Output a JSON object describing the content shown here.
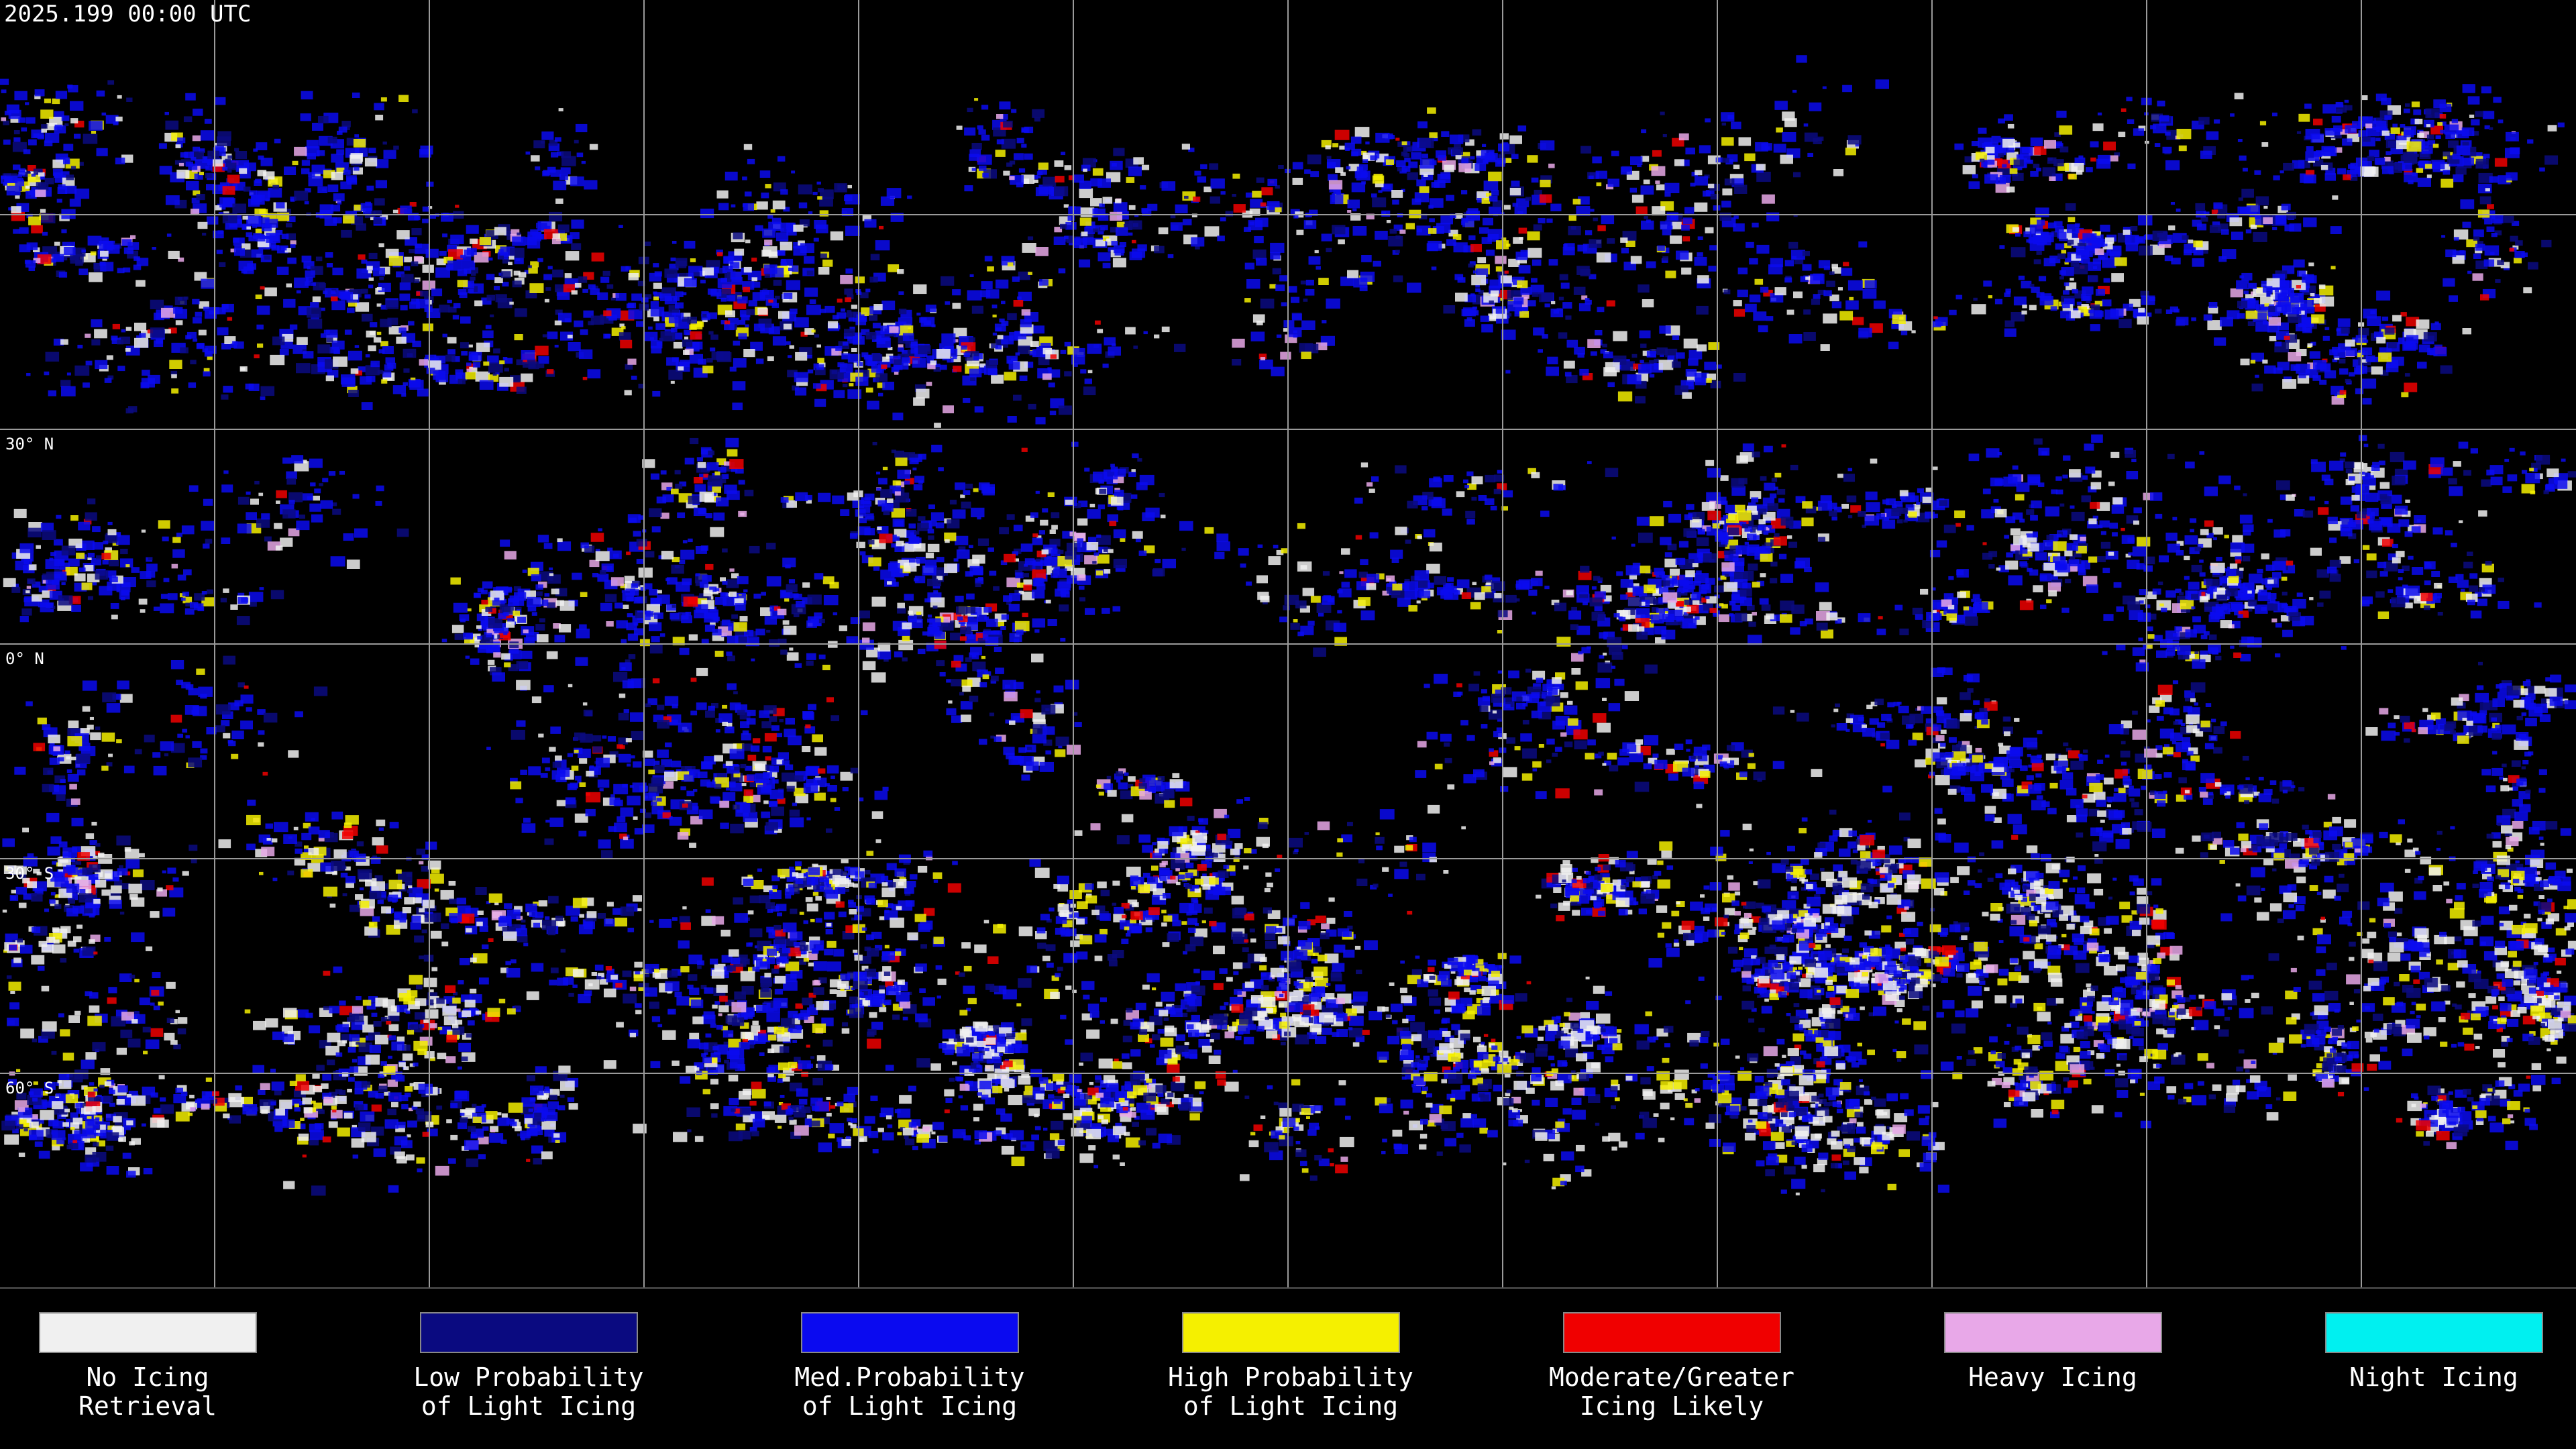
{
  "header": {
    "title": "2025.199 00:00 UTC"
  },
  "map": {
    "latitude_labels": [
      "30° N",
      "0° N",
      "30° S",
      "60° S"
    ]
  },
  "legend": {
    "items": [
      {
        "label": [
          "No Icing",
          "Retrieval"
        ],
        "color": "#f0f0f0"
      },
      {
        "label": [
          "Low Probability",
          "of Light Icing"
        ],
        "color": "#0a0a80"
      },
      {
        "label": [
          "Med.Probability",
          "of Light Icing"
        ],
        "color": "#0a0af0"
      },
      {
        "label": [
          "High Probability",
          "of Light Icing"
        ],
        "color": "#f5f000"
      },
      {
        "label": [
          "Moderate/Greater",
          "Icing Likely"
        ],
        "color": "#f00000"
      },
      {
        "label": [
          "Heavy Icing"
        ],
        "color": "#e8a8e8"
      },
      {
        "label": [
          "Night Icing"
        ],
        "color": "#00f0f0"
      }
    ]
  }
}
